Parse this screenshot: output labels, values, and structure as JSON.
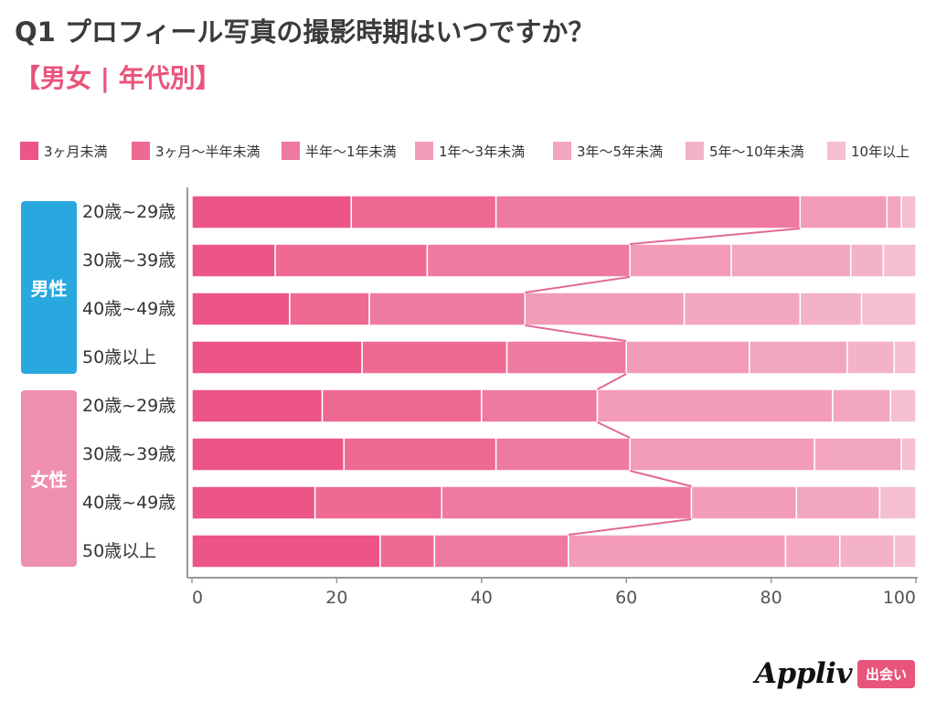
{
  "header": {
    "title": "Q1 プロフィール写真の撮影時期はいつですか？",
    "subtitle": "【男女 | 年代別】",
    "accent_color": "#e9547a"
  },
  "groups": [
    {
      "label": "男性",
      "color": "#29a8df"
    },
    {
      "label": "女性",
      "color": "#ef8fae"
    }
  ],
  "colors": [
    "#ec5585",
    "#ee6a93",
    "#ef7aa1",
    "#f29cb8",
    "#f3a6bf",
    "#f4b2c7",
    "#f5bfd0"
  ],
  "branding": {
    "logo": "Appliv",
    "badge": "出会い"
  },
  "chart_data": {
    "type": "bar",
    "orientation": "horizontal",
    "stacked": true,
    "title": "Q1 プロフィール写真の撮影時期はいつですか？",
    "subtitle": "【男女 | 年代別】",
    "xlim": [
      0,
      100
    ],
    "xticks": [
      0,
      20,
      40,
      60,
      80,
      100
    ],
    "legend_position": "top",
    "categories": [
      "20歳~29歳",
      "30歳~39歳",
      "40歳~49歳",
      "50歳以上",
      "20歳~29歳",
      "30歳~39歳",
      "40歳~49歳",
      "50歳以上"
    ],
    "category_groups": [
      "男性",
      "男性",
      "男性",
      "男性",
      "女性",
      "女性",
      "女性",
      "女性"
    ],
    "series": [
      {
        "name": "3ヶ月未満",
        "values": [
          22,
          11.5,
          13.5,
          23.5,
          18,
          21,
          17,
          26
        ]
      },
      {
        "name": "3ヶ月〜半年未満",
        "values": [
          20,
          21,
          11,
          20,
          22,
          21,
          17.5,
          7.5
        ]
      },
      {
        "name": "半年〜1年未満",
        "values": [
          42,
          28,
          21.5,
          16.5,
          16,
          18.5,
          34.5,
          18.5
        ]
      },
      {
        "name": "1年〜3年未満",
        "values": [
          12,
          14,
          22,
          17,
          32.5,
          25.5,
          14.5,
          30
        ]
      },
      {
        "name": "3年〜5年未満",
        "values": [
          2,
          16.5,
          16,
          13.5,
          8,
          12,
          11.5,
          7.5
        ]
      },
      {
        "name": "5年〜10年未満",
        "values": [
          0,
          4.5,
          8.5,
          6.5,
          0,
          0,
          0,
          7.5
        ]
      },
      {
        "name": "10年以上",
        "values": [
          2,
          4.5,
          7.5,
          3,
          3.5,
          2,
          5,
          3
        ]
      }
    ]
  }
}
